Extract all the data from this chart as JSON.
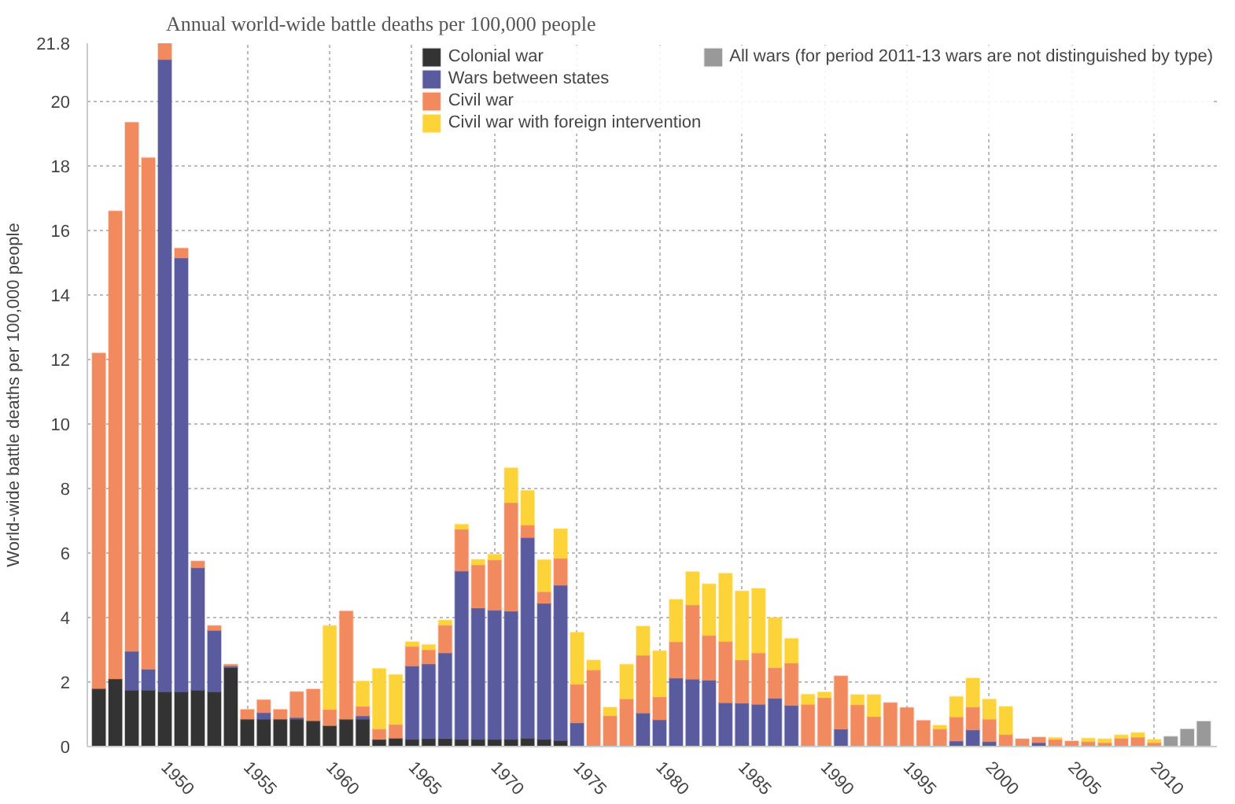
{
  "chart_data": {
    "type": "bar",
    "stacked": true,
    "title": "Annual world-wide battle deaths per 100,000 people",
    "ylabel": "World-wide battle deaths per 100,000 people",
    "x": [
      1946,
      1947,
      1948,
      1949,
      1950,
      1951,
      1952,
      1953,
      1954,
      1955,
      1956,
      1957,
      1958,
      1959,
      1960,
      1961,
      1962,
      1963,
      1964,
      1965,
      1966,
      1967,
      1968,
      1969,
      1970,
      1971,
      1972,
      1973,
      1974,
      1975,
      1976,
      1977,
      1978,
      1979,
      1980,
      1981,
      1982,
      1983,
      1984,
      1985,
      1986,
      1987,
      1988,
      1989,
      1990,
      1991,
      1992,
      1993,
      1994,
      1995,
      1996,
      1997,
      1998,
      1999,
      2000,
      2001,
      2002,
      2003,
      2004,
      2005,
      2006,
      2007,
      2008,
      2009,
      2010,
      2011,
      2012,
      2013
    ],
    "series": [
      {
        "name": "Colonial war",
        "color": "#333333",
        "values": [
          1.8,
          2.1,
          1.75,
          1.75,
          1.7,
          1.7,
          1.75,
          1.7,
          2.45,
          0.85,
          0.85,
          0.85,
          0.85,
          0.8,
          0.65,
          0.85,
          0.85,
          0.22,
          0.26,
          0.22,
          0.25,
          0.25,
          0.22,
          0.22,
          0.22,
          0.22,
          0.26,
          0.22,
          0.19,
          null,
          null,
          null,
          null,
          null,
          null,
          null,
          null,
          null,
          null,
          null,
          null,
          null,
          null,
          null,
          null,
          null,
          null,
          null,
          null,
          null,
          null,
          null,
          null,
          null,
          null,
          null,
          null,
          null,
          null,
          null,
          null,
          null,
          null,
          null,
          null,
          null,
          null,
          null
        ]
      },
      {
        "name": "Wars between states",
        "color": "#5a5b9f",
        "values": [
          null,
          null,
          1.2,
          0.65,
          19.6,
          13.45,
          3.8,
          1.9,
          0.05,
          null,
          0.2,
          null,
          0.05,
          null,
          null,
          null,
          0.1,
          null,
          null,
          2.28,
          2.31,
          2.65,
          5.22,
          4.08,
          4.01,
          3.98,
          6.22,
          4.22,
          4.81,
          0.74,
          null,
          null,
          null,
          1.04,
          0.83,
          2.12,
          2.09,
          2.06,
          1.36,
          1.35,
          1.31,
          1.5,
          1.28,
          null,
          null,
          0.54,
          null,
          null,
          null,
          null,
          null,
          null,
          0.17,
          0.52,
          0.16,
          null,
          null,
          0.12,
          null,
          null,
          null,
          null,
          null,
          null,
          null,
          null,
          null,
          null
        ]
      },
      {
        "name": "Civil war",
        "color": "#f28a60",
        "values": [
          10.4,
          14.5,
          16.4,
          15.85,
          0.5,
          0.3,
          0.2,
          0.15,
          0.05,
          0.3,
          0.4,
          0.3,
          0.8,
          0.98,
          0.5,
          3.35,
          0.3,
          0.33,
          0.43,
          0.61,
          0.44,
          0.87,
          1.3,
          1.33,
          1.56,
          3.36,
          0.39,
          0.36,
          0.84,
          1.19,
          2.38,
          0.96,
          1.48,
          1.79,
          0.71,
          1.13,
          2.3,
          1.39,
          1.9,
          1.34,
          1.59,
          0.95,
          1.31,
          1.31,
          1.52,
          1.65,
          1.3,
          0.93,
          1.36,
          1.21,
          0.81,
          0.55,
          0.75,
          0.71,
          0.69,
          0.38,
          0.24,
          0.17,
          0.22,
          0.17,
          0.16,
          0.12,
          0.26,
          0.29,
          0.12,
          null,
          null,
          null
        ]
      },
      {
        "name": "Civil war with foreign intervention",
        "color": "#fdd33a",
        "values": [
          null,
          null,
          null,
          null,
          null,
          null,
          null,
          null,
          null,
          null,
          null,
          null,
          null,
          null,
          2.6,
          null,
          0.78,
          1.87,
          1.54,
          0.14,
          0.16,
          0.15,
          0.15,
          0.17,
          0.17,
          1.08,
          1.07,
          0.99,
          0.91,
          1.61,
          0.3,
          0.26,
          1.07,
          0.9,
          1.43,
          1.31,
          1.03,
          1.59,
          2.11,
          2.13,
          2.0,
          1.55,
          0.76,
          0.31,
          0.17,
          null,
          0.31,
          0.68,
          null,
          null,
          null,
          0.11,
          0.63,
          0.89,
          0.62,
          0.86,
          null,
          null,
          0.06,
          null,
          0.1,
          0.12,
          0.1,
          0.14,
          0.1,
          null,
          null,
          null
        ]
      },
      {
        "name": "All wars (for period 2011-13 wars are not distinguished by type)",
        "color": "#999999",
        "values": [
          null,
          null,
          null,
          null,
          null,
          null,
          null,
          null,
          null,
          null,
          null,
          null,
          null,
          null,
          null,
          null,
          null,
          null,
          null,
          null,
          null,
          null,
          null,
          null,
          null,
          null,
          null,
          null,
          null,
          null,
          null,
          null,
          null,
          null,
          null,
          null,
          null,
          null,
          null,
          null,
          null,
          null,
          null,
          null,
          null,
          null,
          null,
          null,
          null,
          null,
          null,
          null,
          null,
          null,
          null,
          null,
          null,
          null,
          null,
          null,
          null,
          null,
          null,
          null,
          null,
          0.31,
          0.54,
          0.78
        ]
      }
    ],
    "xlim": [
      1945.3,
      2013.8
    ],
    "xticks": [
      1950,
      1955,
      1960,
      1965,
      1970,
      1975,
      1980,
      1985,
      1990,
      1995,
      2000,
      2005,
      2010
    ],
    "ylim": [
      0,
      21.8
    ],
    "yticks": [
      0,
      2,
      4,
      6,
      8,
      10,
      12,
      14,
      16,
      18,
      20,
      21.8
    ],
    "grid": true,
    "legend": "top right"
  }
}
